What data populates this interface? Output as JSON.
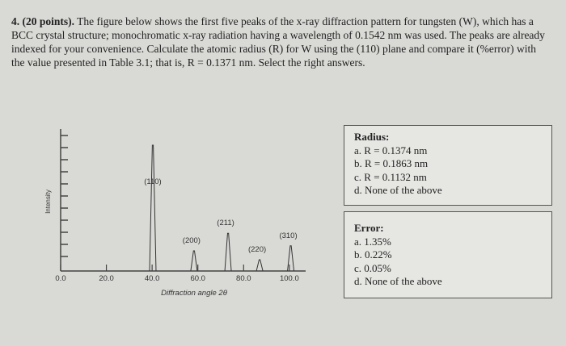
{
  "question": {
    "number": "4.",
    "points": "(20 points).",
    "text": "The figure below shows the first five peaks of the x-ray diffraction pattern for tungsten (W), which has a BCC crystal structure; monochromatic x-ray radiation having a wavelength of 0.1542 nm was used. The peaks are already indexed for your convenience. Calculate the atomic radius (R) for W using the (110) plane and compare it (%error) with the value presented in Table 3.1; that is, R = 0.1371 nm. Select the right answers."
  },
  "figure": {
    "type": "xrd-pattern",
    "y_label": "Intensity",
    "x_label": "Diffraction angle 2θ",
    "xlim": [
      0,
      105
    ],
    "ylim": [
      0,
      100
    ],
    "xticks": [
      {
        "value": 0,
        "label": "0.0"
      },
      {
        "value": 20,
        "label": "20.0"
      },
      {
        "value": 40,
        "label": "40.0"
      },
      {
        "value": 60,
        "label": "60.0"
      },
      {
        "value": 80,
        "label": "80.0"
      },
      {
        "value": 100,
        "label": "100.0"
      }
    ],
    "peaks": [
      {
        "label": "(110)",
        "x": 40.3,
        "y": 100
      },
      {
        "label": "(200)",
        "x": 58.3,
        "y": 16
      },
      {
        "label": "(211)",
        "x": 73.2,
        "y": 30
      },
      {
        "label": "(220)",
        "x": 87.0,
        "y": 9
      },
      {
        "label": "(310)",
        "x": 100.6,
        "y": 20
      }
    ]
  },
  "radius_box": {
    "title": "Radius:",
    "options": [
      "a. R = 0.1374 nm",
      "b. R = 0.1863 nm",
      "c. R = 0.1132 nm",
      "d. None of the above"
    ]
  },
  "error_box": {
    "title": "Error:",
    "options": [
      "a. 1.35%",
      "b. 0.22%",
      "c. 0.05%",
      "d. None of the above"
    ]
  }
}
